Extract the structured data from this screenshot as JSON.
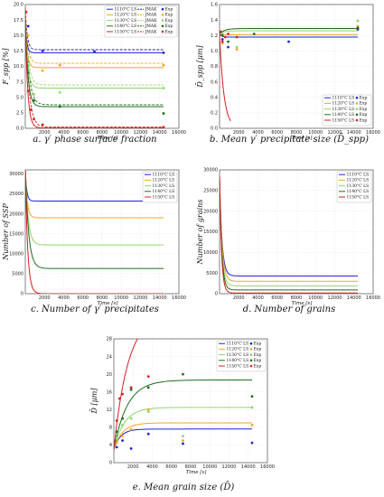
{
  "colors": {
    "c1110": "#1f1fd6",
    "c1120": "#f5a623",
    "c1130": "#8fd66a",
    "c1140": "#1e6b1e",
    "c1150": "#d62020"
  },
  "chart_data": [
    {
      "id": "a",
      "type": "line",
      "caption": "a.  γ′ phase surface fraction",
      "ylabel": "F_spp [%]",
      "xlabel": "Time [s]",
      "xlim": [
        0,
        16000
      ],
      "ylim": [
        0,
        20
      ],
      "xticks": [
        2000,
        4000,
        6000,
        8000,
        10000,
        12000,
        14000,
        16000
      ],
      "yticks": [
        0,
        2.5,
        5,
        7.5,
        10,
        12.5,
        15,
        17.5,
        20
      ],
      "ytick_labels": [
        "0.0",
        "2.5",
        "5.0",
        "7.5",
        "10.0",
        "12.5",
        "15.0",
        "17.5",
        "20.0"
      ],
      "grid": true,
      "legend_position": "top-right",
      "legend": [
        "1110°C LS",
        "JMAK",
        "Exp",
        "1120°C LS",
        "JMAK",
        "Exp",
        "1130°C LS",
        "JMAK",
        "Exp",
        "1140°C LS",
        "JMAK",
        "Exp",
        "1150°C LS",
        "JMAK",
        "Exp"
      ],
      "x_end": 14400,
      "series": [
        {
          "name": "1110°C LS",
          "color": "c1110",
          "start": 17.5,
          "end": 12.2,
          "tau": 150
        },
        {
          "name": "1120°C LS",
          "color": "c1120",
          "start": 17.5,
          "end": 9.8,
          "tau": 200
        },
        {
          "name": "1130°C LS",
          "color": "c1130",
          "start": 17.5,
          "end": 6.5,
          "tau": 250
        },
        {
          "name": "1140°C LS",
          "color": "c1140",
          "start": 17.5,
          "end": 3.5,
          "tau": 280
        },
        {
          "name": "1150°C LS",
          "color": "c1150",
          "start": 17.5,
          "end": 0.05,
          "tau": 250
        }
      ],
      "jmak": [
        {
          "name": "JMAK",
          "color": "c1110",
          "start": 19.5,
          "end": 12.7,
          "tau": 200
        },
        {
          "name": "JMAK",
          "color": "c1120",
          "start": 19.5,
          "end": 10.5,
          "tau": 250
        },
        {
          "name": "JMAK",
          "color": "c1130",
          "start": 19.5,
          "end": 7.0,
          "tau": 300
        },
        {
          "name": "JMAK",
          "color": "c1140",
          "start": 19.5,
          "end": 3.8,
          "tau": 350
        },
        {
          "name": "JMAK",
          "color": "c1150",
          "start": 19.5,
          "end": 0.2,
          "tau": 350
        }
      ],
      "exp": [
        {
          "color": "c1110",
          "points": [
            [
              300,
              16.5
            ],
            [
              1800,
              12.5
            ],
            [
              7200,
              12.4
            ],
            [
              14400,
              12.2
            ]
          ]
        },
        {
          "color": "c1120",
          "points": [
            [
              300,
              15.0
            ],
            [
              1800,
              9.3
            ],
            [
              3600,
              10.2
            ],
            [
              14400,
              10.2
            ]
          ]
        },
        {
          "color": "c1130",
          "points": [
            [
              300,
              11.5
            ],
            [
              900,
              5.5
            ],
            [
              3600,
              5.8
            ],
            [
              14400,
              6.5
            ]
          ]
        },
        {
          "color": "c1140",
          "points": [
            [
              300,
              9.0
            ],
            [
              900,
              4.5
            ],
            [
              3600,
              3.5
            ],
            [
              14400,
              2.4
            ]
          ]
        },
        {
          "color": "c1150",
          "points": [
            [
              100,
              18.8
            ],
            [
              300,
              6.0
            ],
            [
              600,
              3.0
            ],
            [
              900,
              1.5
            ],
            [
              1800,
              0.6
            ],
            [
              14400,
              0.2
            ]
          ]
        }
      ]
    },
    {
      "id": "b",
      "type": "line",
      "caption": "b.  Mean γ′ precipitate size (D̄_spp)",
      "ylabel": "D̄_spp [μm]",
      "xlabel": "Time [s]",
      "xlim": [
        0,
        16000
      ],
      "ylim": [
        0,
        1.6
      ],
      "xticks": [
        2000,
        4000,
        6000,
        8000,
        10000,
        12000,
        14000,
        16000
      ],
      "yticks": [
        0,
        0.2,
        0.4,
        0.6,
        0.8,
        1.0,
        1.2,
        1.4,
        1.6
      ],
      "ytick_labels": [
        "0.0",
        "0.2",
        "0.4",
        "0.6",
        "0.8",
        "1.0",
        "1.2",
        "1.4",
        "1.6"
      ],
      "grid": true,
      "legend_position": "bottom-right",
      "legend": [
        "1110°C LS",
        "Exp",
        "1120°C LS",
        "Exp",
        "1130°C LS",
        "Exp",
        "1140°C LS",
        "Exp",
        "1150°C LS",
        "Exp"
      ],
      "x_end": 14400,
      "series": [
        {
          "name": "1110°C LS",
          "color": "c1110",
          "start": 1.22,
          "end": 1.18,
          "tau": 200
        },
        {
          "name": "1120°C LS",
          "color": "c1120",
          "start": 1.22,
          "end": 1.21,
          "tau": 300
        },
        {
          "name": "1130°C LS",
          "color": "c1130",
          "start": 1.22,
          "end": 1.26,
          "tau": 400
        },
        {
          "name": "1140°C LS",
          "color": "c1140",
          "start": 1.22,
          "end": 1.29,
          "tau": 500
        },
        {
          "name": "1150°C LS",
          "color": "c1150",
          "start": 1.22,
          "end": 0.0,
          "tau": 450,
          "x_end": 1150
        }
      ],
      "exp": [
        {
          "color": "c1110",
          "points": [
            [
              300,
              1.15
            ],
            [
              900,
              1.05
            ],
            [
              7200,
              1.12
            ],
            [
              14400,
              1.28
            ]
          ]
        },
        {
          "color": "c1120",
          "points": [
            [
              300,
              1.1
            ],
            [
              1800,
              1.02
            ],
            [
              14400,
              1.32
            ]
          ]
        },
        {
          "color": "c1130",
          "points": [
            [
              300,
              1.22
            ],
            [
              1800,
              1.05
            ],
            [
              14400,
              1.39
            ]
          ]
        },
        {
          "color": "c1140",
          "points": [
            [
              300,
              1.2
            ],
            [
              900,
              1.12
            ],
            [
              3600,
              1.22
            ],
            [
              14400,
              1.3
            ]
          ]
        },
        {
          "color": "c1150",
          "points": [
            [
              100,
              1.25
            ],
            [
              300,
              1.12
            ],
            [
              600,
              1.18
            ],
            [
              900,
              1.22
            ],
            [
              1800,
              1.18
            ]
          ]
        }
      ]
    },
    {
      "id": "c",
      "type": "line",
      "caption": "c.  Number of γ′ precipitates",
      "ylabel": "Number of SSP",
      "xlabel": "Time [s]",
      "xlim": [
        0,
        16000
      ],
      "ylim": [
        0,
        31000
      ],
      "xticks": [
        2000,
        4000,
        6000,
        8000,
        10000,
        12000,
        14000,
        16000
      ],
      "yticks": [
        0,
        5000,
        10000,
        15000,
        20000,
        25000,
        30000
      ],
      "ytick_labels": [
        "0",
        "5000",
        "10000",
        "15000",
        "20000",
        "25000",
        "30000"
      ],
      "grid": true,
      "legend_position": "top-right",
      "legend": [
        "1110°C LS",
        "1120°C LS",
        "1130°C LS",
        "1140°C LS",
        "1150°C LS"
      ],
      "x_end": 14400,
      "series": [
        {
          "name": "1110°C LS",
          "color": "c1110",
          "start": 31000,
          "end": 23200,
          "tau": 150
        },
        {
          "name": "1120°C LS",
          "color": "c1120",
          "start": 31000,
          "end": 19000,
          "tau": 200
        },
        {
          "name": "1130°C LS",
          "color": "c1130",
          "start": 31000,
          "end": 12200,
          "tau": 300
        },
        {
          "name": "1140°C LS",
          "color": "c1140",
          "start": 31000,
          "end": 6300,
          "tau": 350
        },
        {
          "name": "1150°C LS",
          "color": "c1150",
          "start": 31000,
          "end": 0,
          "tau": 250
        }
      ]
    },
    {
      "id": "d",
      "type": "line",
      "caption": "d.  Number of grains",
      "ylabel": "Number of grains",
      "xlabel": "Time [s]",
      "xlim": [
        0,
        16000
      ],
      "ylim": [
        0,
        30000
      ],
      "xticks": [
        2000,
        4000,
        6000,
        8000,
        10000,
        12000,
        14000,
        16000
      ],
      "yticks": [
        0,
        5000,
        10000,
        15000,
        20000,
        25000,
        30000
      ],
      "ytick_labels": [
        "0",
        "5000",
        "10000",
        "15000",
        "20000",
        "25000",
        "30000"
      ],
      "grid": true,
      "legend_position": "top-right",
      "legend": [
        "1110°C LS",
        "1120°C LS",
        "1130°C LS",
        "1140°C LS",
        "1150°C LS"
      ],
      "x_end": 14400,
      "series": [
        {
          "name": "1110°C LS",
          "color": "c1110",
          "start": 28500,
          "end": 4300,
          "tau": 250
        },
        {
          "name": "1120°C LS",
          "color": "c1120",
          "start": 28500,
          "end": 3000,
          "tau": 250
        },
        {
          "name": "1130°C LS",
          "color": "c1130",
          "start": 28500,
          "end": 1900,
          "tau": 230
        },
        {
          "name": "1140°C LS",
          "color": "c1140",
          "start": 28500,
          "end": 900,
          "tau": 220
        },
        {
          "name": "1150°C LS",
          "color": "c1150",
          "start": 28500,
          "end": 150,
          "tau": 200
        }
      ]
    },
    {
      "id": "e",
      "type": "line",
      "caption": "e.  Mean grain size (D̄)",
      "ylabel": "D̄ [μm]",
      "xlabel": "Time [s]",
      "xlim": [
        0,
        16000
      ],
      "ylim": [
        0,
        28
      ],
      "xticks": [
        2000,
        4000,
        6000,
        8000,
        10000,
        12000,
        14000,
        16000
      ],
      "yticks": [
        0,
        4,
        8,
        12,
        16,
        20,
        24,
        28
      ],
      "ytick_labels": [
        "0",
        "4",
        "8",
        "12",
        "16",
        "20",
        "24",
        "28"
      ],
      "grid": true,
      "legend_position": "top-right",
      "legend": [
        "1110°C LS",
        "Exp",
        "1120°C LS",
        "Exp",
        "1130°C LS",
        "Exp",
        "1140°C LS",
        "Exp",
        "1150°C LS",
        "Exp"
      ],
      "x_end": 14400,
      "series": [
        {
          "name": "1110°C LS",
          "color": "c1110",
          "start": 3.0,
          "end": 7.6,
          "tau": 700
        },
        {
          "name": "1120°C LS",
          "color": "c1120",
          "start": 3.0,
          "end": 9.0,
          "tau": 900
        },
        {
          "name": "1130°C LS",
          "color": "c1130",
          "start": 3.0,
          "end": 12.5,
          "tau": 1100
        },
        {
          "name": "1140°C LS",
          "color": "c1140",
          "start": 3.0,
          "end": 18.7,
          "tau": 1400
        },
        {
          "name": "1150°C LS",
          "color": "c1150",
          "start": 3.0,
          "end": 34,
          "tau": 1500,
          "x_end": 2600
        }
      ],
      "exp": [
        {
          "color": "c1110",
          "points": [
            [
              300,
              3.5
            ],
            [
              900,
              5.0
            ],
            [
              1800,
              3.2
            ],
            [
              3600,
              6.5
            ],
            [
              7200,
              4.3
            ],
            [
              14400,
              4.5
            ]
          ]
        },
        {
          "color": "c1120",
          "points": [
            [
              300,
              4.5
            ],
            [
              900,
              6.0
            ],
            [
              1800,
              7.5
            ],
            [
              3600,
              12.0
            ],
            [
              7200,
              5.0
            ],
            [
              14400,
              8.5
            ]
          ]
        },
        {
          "color": "c1130",
          "points": [
            [
              300,
              5.5
            ],
            [
              900,
              8.5
            ],
            [
              1800,
              10.0
            ],
            [
              3600,
              11.5
            ],
            [
              7200,
              6.0
            ],
            [
              14400,
              12.5
            ]
          ]
        },
        {
          "color": "c1140",
          "points": [
            [
              300,
              7.0
            ],
            [
              900,
              10.0
            ],
            [
              1800,
              16.5
            ],
            [
              3600,
              17.0
            ],
            [
              7200,
              20.0
            ],
            [
              14400,
              15.0
            ]
          ]
        },
        {
          "color": "c1150",
          "points": [
            [
              300,
              9.5
            ],
            [
              600,
              14.5
            ],
            [
              900,
              15.5
            ],
            [
              1800,
              17.0
            ],
            [
              3600,
              19.5
            ],
            [
              14400,
              21.0
            ]
          ]
        }
      ]
    }
  ]
}
